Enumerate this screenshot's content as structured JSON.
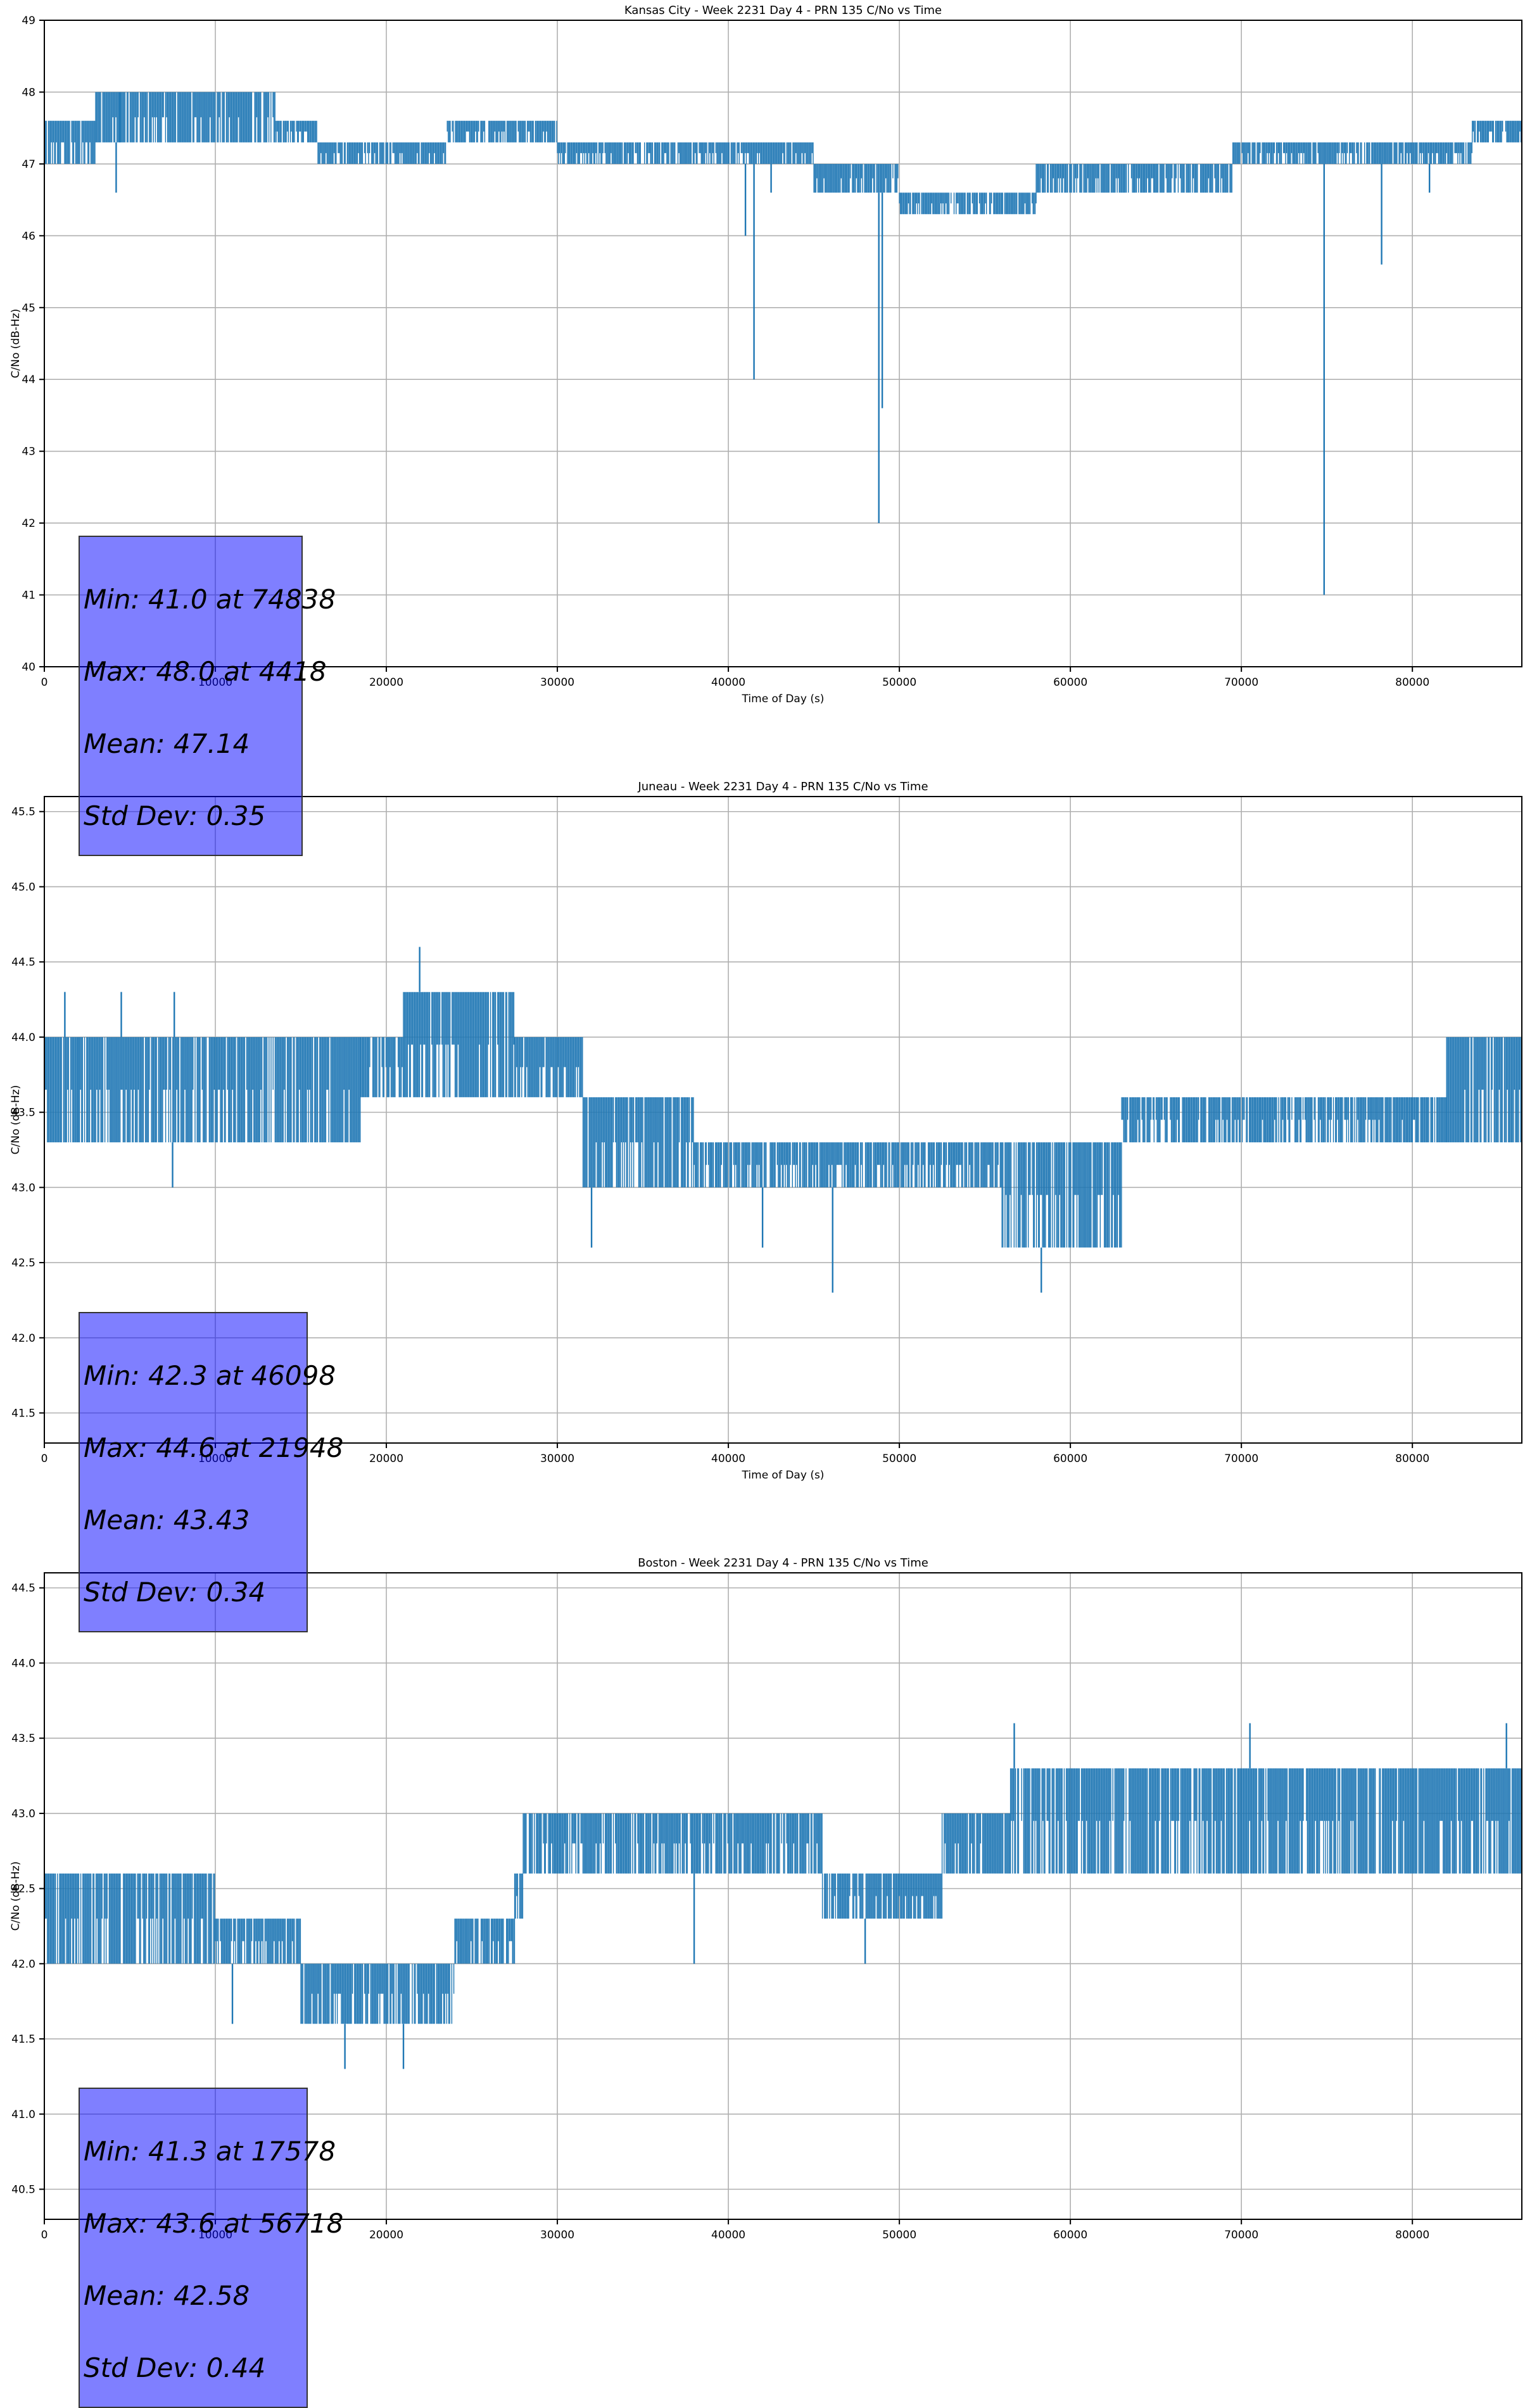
{
  "chart_data": [
    {
      "type": "line",
      "title": "Kansas City - Week 2231 Day 4 - PRN 135 C/No vs Time",
      "xlabel": "Time of Day (s)",
      "ylabel": "C/No (dB-Hz)",
      "xlim": [
        0,
        86400
      ],
      "ylim": [
        40,
        49
      ],
      "yticks": [
        "40",
        "41",
        "42",
        "43",
        "44",
        "45",
        "46",
        "47",
        "48",
        "49"
      ],
      "xticks": [
        "0",
        "10000",
        "20000",
        "30000",
        "40000",
        "50000",
        "60000",
        "70000",
        "80000"
      ],
      "grid": true,
      "line_color": "#1f77b4",
      "bands": [
        {
          "x": [
            0,
            3000
          ],
          "lo": 47.0,
          "hi": 47.6
        },
        {
          "x": [
            3000,
            13500
          ],
          "lo": 47.3,
          "hi": 48.0
        },
        {
          "x": [
            13500,
            16000
          ],
          "lo": 47.3,
          "hi": 47.6
        },
        {
          "x": [
            16000,
            23500
          ],
          "lo": 47.0,
          "hi": 47.3
        },
        {
          "x": [
            23500,
            30000
          ],
          "lo": 47.3,
          "hi": 47.6
        },
        {
          "x": [
            30000,
            38500
          ],
          "lo": 47.0,
          "hi": 47.3
        },
        {
          "x": [
            38500,
            45000
          ],
          "lo": 47.0,
          "hi": 47.3
        },
        {
          "x": [
            45000,
            50000
          ],
          "lo": 46.6,
          "hi": 47.0
        },
        {
          "x": [
            50000,
            58000
          ],
          "lo": 46.3,
          "hi": 46.6
        },
        {
          "x": [
            58000,
            65000
          ],
          "lo": 46.6,
          "hi": 47.0
        },
        {
          "x": [
            65000,
            69500
          ],
          "lo": 46.6,
          "hi": 47.0
        },
        {
          "x": [
            69500,
            83500
          ],
          "lo": 47.0,
          "hi": 47.3
        },
        {
          "x": [
            83500,
            86400
          ],
          "lo": 47.3,
          "hi": 47.6
        }
      ],
      "spikes": [
        {
          "x": 4418,
          "y": 48.0
        },
        {
          "x": 4200,
          "y": 46.6
        },
        {
          "x": 41000,
          "y": 46.0
        },
        {
          "x": 41500,
          "y": 44.0
        },
        {
          "x": 48800,
          "y": 42.0
        },
        {
          "x": 49000,
          "y": 43.6
        },
        {
          "x": 74838,
          "y": 41.0
        },
        {
          "x": 78200,
          "y": 45.6
        },
        {
          "x": 81000,
          "y": 46.6
        },
        {
          "x": 42500,
          "y": 46.6
        }
      ],
      "stats": {
        "min": "Min: 41.0 at 74838",
        "max": "Max: 48.0 at 4418",
        "mean": "Mean: 47.14",
        "std": "Std Dev: 0.35"
      }
    },
    {
      "type": "line",
      "title": "Juneau - Week 2231 Day 4 - PRN 135 C/No vs Time",
      "xlabel": "Time of Day (s)",
      "ylabel": "C/No (dB-Hz)",
      "xlim": [
        0,
        86400
      ],
      "ylim": [
        41.3,
        45.6
      ],
      "yticks": [
        "41.5",
        "42.0",
        "42.5",
        "43.0",
        "43.5",
        "44.0",
        "44.5",
        "45.0",
        "45.5"
      ],
      "ytick_values": [
        41.5,
        42.0,
        42.5,
        43.0,
        43.5,
        44.0,
        44.5,
        45.0,
        45.5
      ],
      "xticks": [
        "0",
        "10000",
        "20000",
        "30000",
        "40000",
        "50000",
        "60000",
        "70000",
        "80000"
      ],
      "grid": true,
      "line_color": "#1f77b4",
      "bands": [
        {
          "x": [
            0,
            2000
          ],
          "lo": 43.3,
          "hi": 44.0
        },
        {
          "x": [
            2000,
            18500
          ],
          "lo": 43.3,
          "hi": 44.0
        },
        {
          "x": [
            18500,
            21000
          ],
          "lo": 43.6,
          "hi": 44.0
        },
        {
          "x": [
            21000,
            27500
          ],
          "lo": 43.6,
          "hi": 44.3
        },
        {
          "x": [
            27500,
            31500
          ],
          "lo": 43.6,
          "hi": 44.0
        },
        {
          "x": [
            31500,
            38000
          ],
          "lo": 43.0,
          "hi": 43.6
        },
        {
          "x": [
            38000,
            56000
          ],
          "lo": 43.0,
          "hi": 43.3
        },
        {
          "x": [
            56000,
            63000
          ],
          "lo": 42.6,
          "hi": 43.3
        },
        {
          "x": [
            63000,
            82000
          ],
          "lo": 43.3,
          "hi": 43.6
        },
        {
          "x": [
            82000,
            86400
          ],
          "lo": 43.3,
          "hi": 44.0
        }
      ],
      "spikes": [
        {
          "x": 21948,
          "y": 44.6
        },
        {
          "x": 46098,
          "y": 42.3
        },
        {
          "x": 58300,
          "y": 42.3
        },
        {
          "x": 32000,
          "y": 42.6
        },
        {
          "x": 7500,
          "y": 43.0
        },
        {
          "x": 1200,
          "y": 44.3
        },
        {
          "x": 4500,
          "y": 44.3
        },
        {
          "x": 7600,
          "y": 44.3
        },
        {
          "x": 42000,
          "y": 42.6
        }
      ],
      "stats": {
        "min": "Min: 42.3 at 46098",
        "max": "Max: 44.6 at 21948",
        "mean": "Mean: 43.43",
        "std": "Std Dev: 0.34"
      }
    },
    {
      "type": "line",
      "title": "Boston - Week 2231 Day 4 - PRN 135 C/No vs Time",
      "xlabel": "Time of Day (s)",
      "ylabel": "C/No (dB-Hz)",
      "xlim": [
        0,
        86400
      ],
      "ylim": [
        40.3,
        44.6
      ],
      "yticks": [
        "40.5",
        "41.0",
        "41.5",
        "42.0",
        "42.5",
        "43.0",
        "43.5",
        "44.0",
        "44.5"
      ],
      "ytick_values": [
        40.5,
        41.0,
        41.5,
        42.0,
        42.5,
        43.0,
        43.5,
        44.0,
        44.5
      ],
      "xticks": [
        "0",
        "10000",
        "20000",
        "30000",
        "40000",
        "50000",
        "60000",
        "70000",
        "80000"
      ],
      "grid": true,
      "line_color": "#1f77b4",
      "bands": [
        {
          "x": [
            0,
            10000
          ],
          "lo": 42.0,
          "hi": 42.6
        },
        {
          "x": [
            10000,
            15000
          ],
          "lo": 42.0,
          "hi": 42.3
        },
        {
          "x": [
            15000,
            24000
          ],
          "lo": 41.6,
          "hi": 42.0
        },
        {
          "x": [
            24000,
            27500
          ],
          "lo": 42.0,
          "hi": 42.3
        },
        {
          "x": [
            27500,
            28000
          ],
          "lo": 42.3,
          "hi": 42.6
        },
        {
          "x": [
            28000,
            45500
          ],
          "lo": 42.6,
          "hi": 43.0
        },
        {
          "x": [
            45500,
            52500
          ],
          "lo": 42.3,
          "hi": 42.6
        },
        {
          "x": [
            52500,
            56500
          ],
          "lo": 42.6,
          "hi": 43.0
        },
        {
          "x": [
            56500,
            86400
          ],
          "lo": 42.6,
          "hi": 43.3
        }
      ],
      "spikes": [
        {
          "x": 17578,
          "y": 41.3
        },
        {
          "x": 21000,
          "y": 41.3
        },
        {
          "x": 56718,
          "y": 43.6
        },
        {
          "x": 70500,
          "y": 43.6
        },
        {
          "x": 85500,
          "y": 43.6
        },
        {
          "x": 11000,
          "y": 41.6
        },
        {
          "x": 38000,
          "y": 42.0
        },
        {
          "x": 48000,
          "y": 42.0
        }
      ],
      "stats": {
        "min": "Min: 41.3 at 17578",
        "max": "Max: 43.6 at 56718",
        "mean": "Mean: 42.58",
        "std": "Std Dev: 0.44"
      }
    }
  ]
}
